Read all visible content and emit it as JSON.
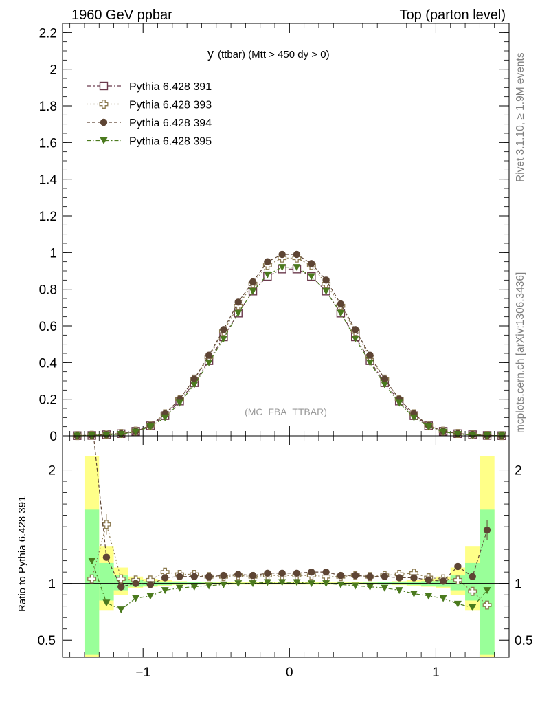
{
  "header": {
    "left": "1960 GeV ppbar",
    "right": "Top (parton level)"
  },
  "side_labels": {
    "rivet": "Rivet 3.1.10, ≥ 1.9M events",
    "source": "mcplots.cern.ch [arXiv:1306.3436]"
  },
  "plot_title_main": "y",
  "plot_title_rest": "(ttbar) (Mtt > 450 dy > 0)",
  "annotation": "(MC_FBA_TTBAR)",
  "ratio_ylabel": "Ratio to Pythia 6.428 391",
  "chart_data": [
    {
      "type": "line",
      "title": "y (ttbar) (Mtt > 450 dy > 0)",
      "xlim": [
        -1.55,
        1.5
      ],
      "ylim": [
        0,
        2.25
      ],
      "y_ticks": [
        "0",
        "0.2",
        "0.4",
        "0.6",
        "0.8",
        "1",
        "1.2",
        "1.4",
        "1.6",
        "1.8",
        "2",
        "2.2"
      ],
      "legend_position": "top-left",
      "x": [
        -1.45,
        -1.35,
        -1.25,
        -1.15,
        -1.05,
        -0.95,
        -0.85,
        -0.75,
        -0.65,
        -0.55,
        -0.45,
        -0.35,
        -0.25,
        -0.15,
        -0.05,
        0.05,
        0.15,
        0.25,
        0.35,
        0.45,
        0.55,
        0.65,
        0.75,
        0.85,
        0.95,
        1.05,
        1.15,
        1.25,
        1.35,
        1.45
      ],
      "series": [
        {
          "name": "Pythia 6.428 391",
          "marker": "open-square",
          "color": "#6b3a4d",
          "values": [
            0.001,
            0.002,
            0.006,
            0.012,
            0.025,
            0.055,
            0.11,
            0.19,
            0.29,
            0.41,
            0.54,
            0.67,
            0.79,
            0.87,
            0.91,
            0.91,
            0.87,
            0.79,
            0.67,
            0.54,
            0.41,
            0.29,
            0.19,
            0.11,
            0.055,
            0.025,
            0.012,
            0.006,
            0.002,
            0.001
          ]
        },
        {
          "name": "Pythia 6.428 393",
          "marker": "open-cross",
          "color": "#8c7a50",
          "values": [
            0.001,
            0.003,
            0.009,
            0.013,
            0.026,
            0.057,
            0.12,
            0.2,
            0.31,
            0.43,
            0.57,
            0.71,
            0.83,
            0.93,
            0.97,
            0.97,
            0.93,
            0.83,
            0.71,
            0.57,
            0.43,
            0.31,
            0.2,
            0.12,
            0.057,
            0.026,
            0.013,
            0.006,
            0.002,
            0.001
          ]
        },
        {
          "name": "Pythia 6.428 394",
          "marker": "filled-circle",
          "color": "#5e4534",
          "values": [
            0.001,
            0.003,
            0.007,
            0.012,
            0.025,
            0.057,
            0.12,
            0.2,
            0.31,
            0.44,
            0.58,
            0.73,
            0.84,
            0.95,
            0.99,
            0.99,
            0.94,
            0.85,
            0.72,
            0.58,
            0.44,
            0.31,
            0.2,
            0.12,
            0.057,
            0.025,
            0.012,
            0.007,
            0.002,
            0.001
          ]
        },
        {
          "name": "Pythia 6.428 395",
          "marker": "filled-triangle-down",
          "color": "#4b7a1e",
          "values": [
            0.001,
            0.002,
            0.005,
            0.009,
            0.022,
            0.05,
            0.1,
            0.18,
            0.28,
            0.4,
            0.53,
            0.67,
            0.79,
            0.88,
            0.92,
            0.92,
            0.87,
            0.79,
            0.67,
            0.53,
            0.4,
            0.28,
            0.18,
            0.1,
            0.05,
            0.022,
            0.009,
            0.005,
            0.002,
            0.001
          ]
        }
      ]
    },
    {
      "type": "line",
      "ylabel": "Ratio to Pythia 6.428 391",
      "xlim": [
        -1.55,
        1.5
      ],
      "ylim": [
        0.35,
        2.3
      ],
      "x_ticks": [
        "−1",
        "0",
        "1"
      ],
      "y_ticks": [
        "0.5",
        "1",
        "2"
      ],
      "x": [
        -1.35,
        -1.25,
        -1.15,
        -1.05,
        -0.95,
        -0.85,
        -0.75,
        -0.65,
        -0.55,
        -0.45,
        -0.35,
        -0.25,
        -0.15,
        -0.05,
        0.05,
        0.15,
        0.25,
        0.35,
        0.45,
        0.55,
        0.65,
        0.75,
        0.85,
        0.95,
        1.05,
        1.15,
        1.25,
        1.35
      ],
      "band_yellow": {
        "lo": [
          0.35,
          0.76,
          0.9,
          0.96,
          0.97,
          0.98,
          0.985,
          0.99,
          0.99,
          0.99,
          0.99,
          0.99,
          0.99,
          0.99,
          0.99,
          0.99,
          0.99,
          0.99,
          0.99,
          0.99,
          0.99,
          0.985,
          0.98,
          0.97,
          0.96,
          0.9,
          0.76,
          0.35
        ],
        "hi": [
          2.12,
          1.33,
          1.14,
          1.06,
          1.04,
          1.03,
          1.02,
          1.015,
          1.012,
          1.01,
          1.01,
          1.01,
          1.01,
          1.01,
          1.01,
          1.01,
          1.01,
          1.01,
          1.01,
          1.012,
          1.015,
          1.02,
          1.03,
          1.04,
          1.06,
          1.14,
          1.33,
          2.12
        ]
      },
      "band_green": {
        "lo": [
          0.37,
          0.85,
          0.94,
          0.97,
          0.98,
          0.985,
          0.99,
          0.99,
          0.993,
          0.995,
          0.995,
          0.995,
          0.995,
          0.995,
          0.995,
          0.995,
          0.995,
          0.995,
          0.995,
          0.993,
          0.99,
          0.99,
          0.985,
          0.98,
          0.97,
          0.94,
          0.85,
          0.37
        ],
        "hi": [
          1.65,
          1.18,
          1.07,
          1.035,
          1.02,
          1.015,
          1.012,
          1.01,
          1.008,
          1.006,
          1.005,
          1.005,
          1.005,
          1.005,
          1.005,
          1.005,
          1.005,
          1.005,
          1.006,
          1.008,
          1.01,
          1.012,
          1.015,
          1.02,
          1.035,
          1.07,
          1.18,
          1.65
        ]
      },
      "series": [
        {
          "name": "Pythia 6.428 393",
          "marker": "open-cross",
          "color": "#8c7a50",
          "values": [
            1.04,
            1.52,
            1.04,
            1.03,
            1.03,
            1.1,
            1.08,
            1.08,
            1.06,
            1.06,
            1.07,
            1.06,
            1.07,
            1.07,
            1.07,
            1.07,
            1.06,
            1.06,
            1.07,
            1.06,
            1.07,
            1.08,
            1.09,
            1.05,
            1.04,
            1.03,
            0.93,
            0.81
          ]
        },
        {
          "name": "Pythia 6.428 394",
          "marker": "filled-circle",
          "color": "#5e4534",
          "values": [
            2.45,
            1.23,
            0.97,
            1.0,
            0.99,
            1.05,
            1.06,
            1.06,
            1.06,
            1.07,
            1.08,
            1.07,
            1.09,
            1.09,
            1.09,
            1.1,
            1.1,
            1.07,
            1.07,
            1.06,
            1.06,
            1.05,
            1.05,
            1.03,
            1.02,
            1.15,
            1.06,
            1.47
          ]
        },
        {
          "name": "Pythia 6.428 395",
          "marker": "filled-triangle-down",
          "color": "#4b7a1e",
          "values": [
            1.2,
            0.83,
            0.77,
            0.87,
            0.89,
            0.94,
            0.96,
            0.97,
            0.98,
            0.99,
            1.0,
            1.0,
            1.01,
            1.01,
            1.01,
            1.0,
            1.0,
            0.99,
            0.98,
            0.97,
            0.96,
            0.94,
            0.91,
            0.89,
            0.87,
            0.82,
            0.79,
            0.94
          ]
        }
      ]
    }
  ]
}
